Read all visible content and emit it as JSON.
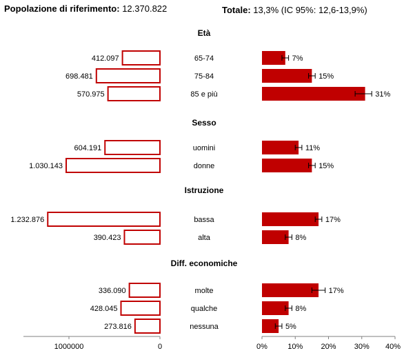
{
  "header": {
    "population_label": "Popolazione di riferimento:",
    "population_value": "12.370.822",
    "total_label": "Totale:",
    "total_value": "13,3% (IC 95%: 12,6-13,9%)"
  },
  "colors": {
    "bar_fill": "#c00000",
    "bar_outline": "#c00000",
    "axis": "#808080"
  },
  "chart_data": [
    {
      "type": "bar",
      "orientation": "horizontal",
      "direction": "right-to-left",
      "groups": [
        {
          "title": "Età",
          "categories": [
            "65-74",
            "75-84",
            "85 e più"
          ],
          "values": [
            412097,
            698481,
            570975
          ],
          "labels": [
            "412.097",
            "698.481",
            "570.975"
          ]
        },
        {
          "title": "Sesso",
          "categories": [
            "uomini",
            "donne"
          ],
          "values": [
            604191,
            1030143
          ],
          "labels": [
            "604.191",
            "1.030.143"
          ]
        },
        {
          "title": "Istruzione",
          "categories": [
            "bassa",
            "alta"
          ],
          "values": [
            1232876,
            390423
          ],
          "labels": [
            "1.232.876",
            "390.423"
          ]
        },
        {
          "title": "Diff. economiche",
          "categories": [
            "molte",
            "qualche",
            "nessuna"
          ],
          "values": [
            336090,
            428045,
            273816
          ],
          "labels": [
            "336.090",
            "428.045",
            "273.816"
          ]
        }
      ],
      "xlim": [
        0,
        1250000
      ],
      "ticks": [
        1000000,
        0
      ],
      "tick_labels": [
        "1000000",
        "0"
      ]
    },
    {
      "type": "bar",
      "orientation": "horizontal",
      "groups": [
        {
          "title": "Età",
          "categories": [
            "65-74",
            "75-84",
            "85 e più"
          ],
          "values": [
            7,
            15,
            31
          ],
          "ci_low": [
            6,
            14,
            28
          ],
          "ci_high": [
            8,
            16,
            33
          ],
          "labels": [
            "7%",
            "15%",
            "31%"
          ]
        },
        {
          "title": "Sesso",
          "categories": [
            "uomini",
            "donne"
          ],
          "values": [
            11,
            15
          ],
          "ci_low": [
            10,
            14
          ],
          "ci_high": [
            12,
            16
          ],
          "labels": [
            "11%",
            "15%"
          ]
        },
        {
          "title": "Istruzione",
          "categories": [
            "bassa",
            "alta"
          ],
          "values": [
            17,
            8
          ],
          "ci_low": [
            16,
            7
          ],
          "ci_high": [
            18,
            9
          ],
          "labels": [
            "17%",
            "8%"
          ]
        },
        {
          "title": "Diff. economiche",
          "categories": [
            "molte",
            "qualche",
            "nessuna"
          ],
          "values": [
            17,
            8,
            5
          ],
          "ci_low": [
            15,
            7,
            4
          ],
          "ci_high": [
            19,
            9,
            6
          ],
          "labels": [
            "17%",
            "8%",
            "5%"
          ]
        }
      ],
      "xlim": [
        0,
        40
      ],
      "ticks": [
        0,
        10,
        20,
        30,
        40
      ],
      "tick_labels": [
        "0%",
        "10%",
        "20%",
        "30%",
        "40%"
      ]
    }
  ]
}
